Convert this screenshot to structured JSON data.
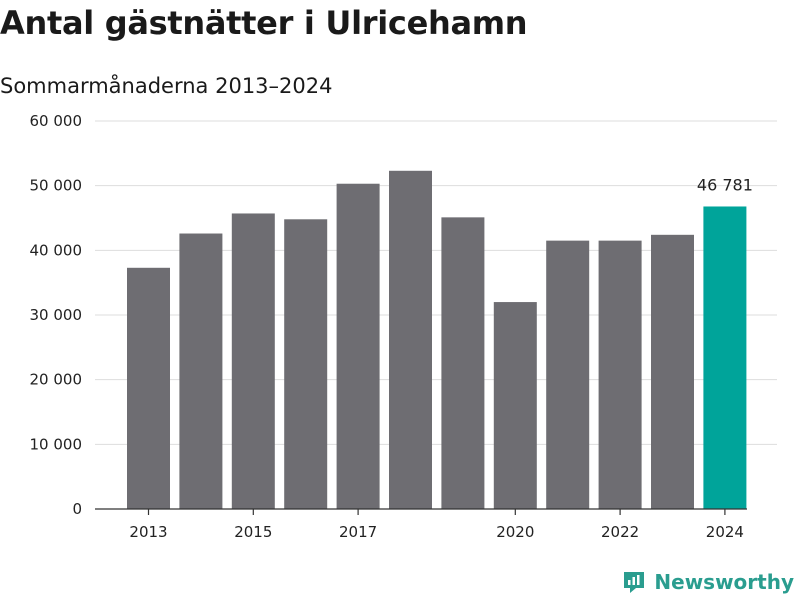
{
  "header": {
    "title": "Antal gästnätter i Ulricehamn",
    "subtitle": "Sommarmånaderna 2013–2024"
  },
  "brand": {
    "name": "Newsworthy",
    "icon": "newsworthy-logo-icon",
    "color": "#2a9d8f"
  },
  "colors": {
    "bar": "#6e6d72",
    "highlight": "#00a49a",
    "grid": "#dddddd",
    "axis": "#333333"
  },
  "chart_data": {
    "type": "bar",
    "title": "Antal gästnätter i Ulricehamn",
    "subtitle": "Sommarmånaderna 2013–2024",
    "categories": [
      "2013",
      "2014",
      "2015",
      "2016",
      "2017",
      "2018",
      "2019",
      "2020",
      "2021",
      "2022",
      "2023",
      "2024"
    ],
    "values": [
      37300,
      42600,
      45700,
      44800,
      50300,
      52300,
      45100,
      32000,
      41500,
      41500,
      42400,
      46781
    ],
    "x_tick_labels": [
      "2013",
      "2015",
      "2017",
      "2020",
      "2022",
      "2024"
    ],
    "y_ticks": [
      0,
      10000,
      20000,
      30000,
      40000,
      50000,
      60000
    ],
    "y_tick_labels": [
      "0",
      "10 000",
      "20 000",
      "30 000",
      "40 000",
      "50 000",
      "60 000"
    ],
    "ylim": [
      0,
      60000
    ],
    "highlight_index": 11,
    "data_label": "46 781",
    "grid": true,
    "xlabel": "",
    "ylabel": ""
  }
}
